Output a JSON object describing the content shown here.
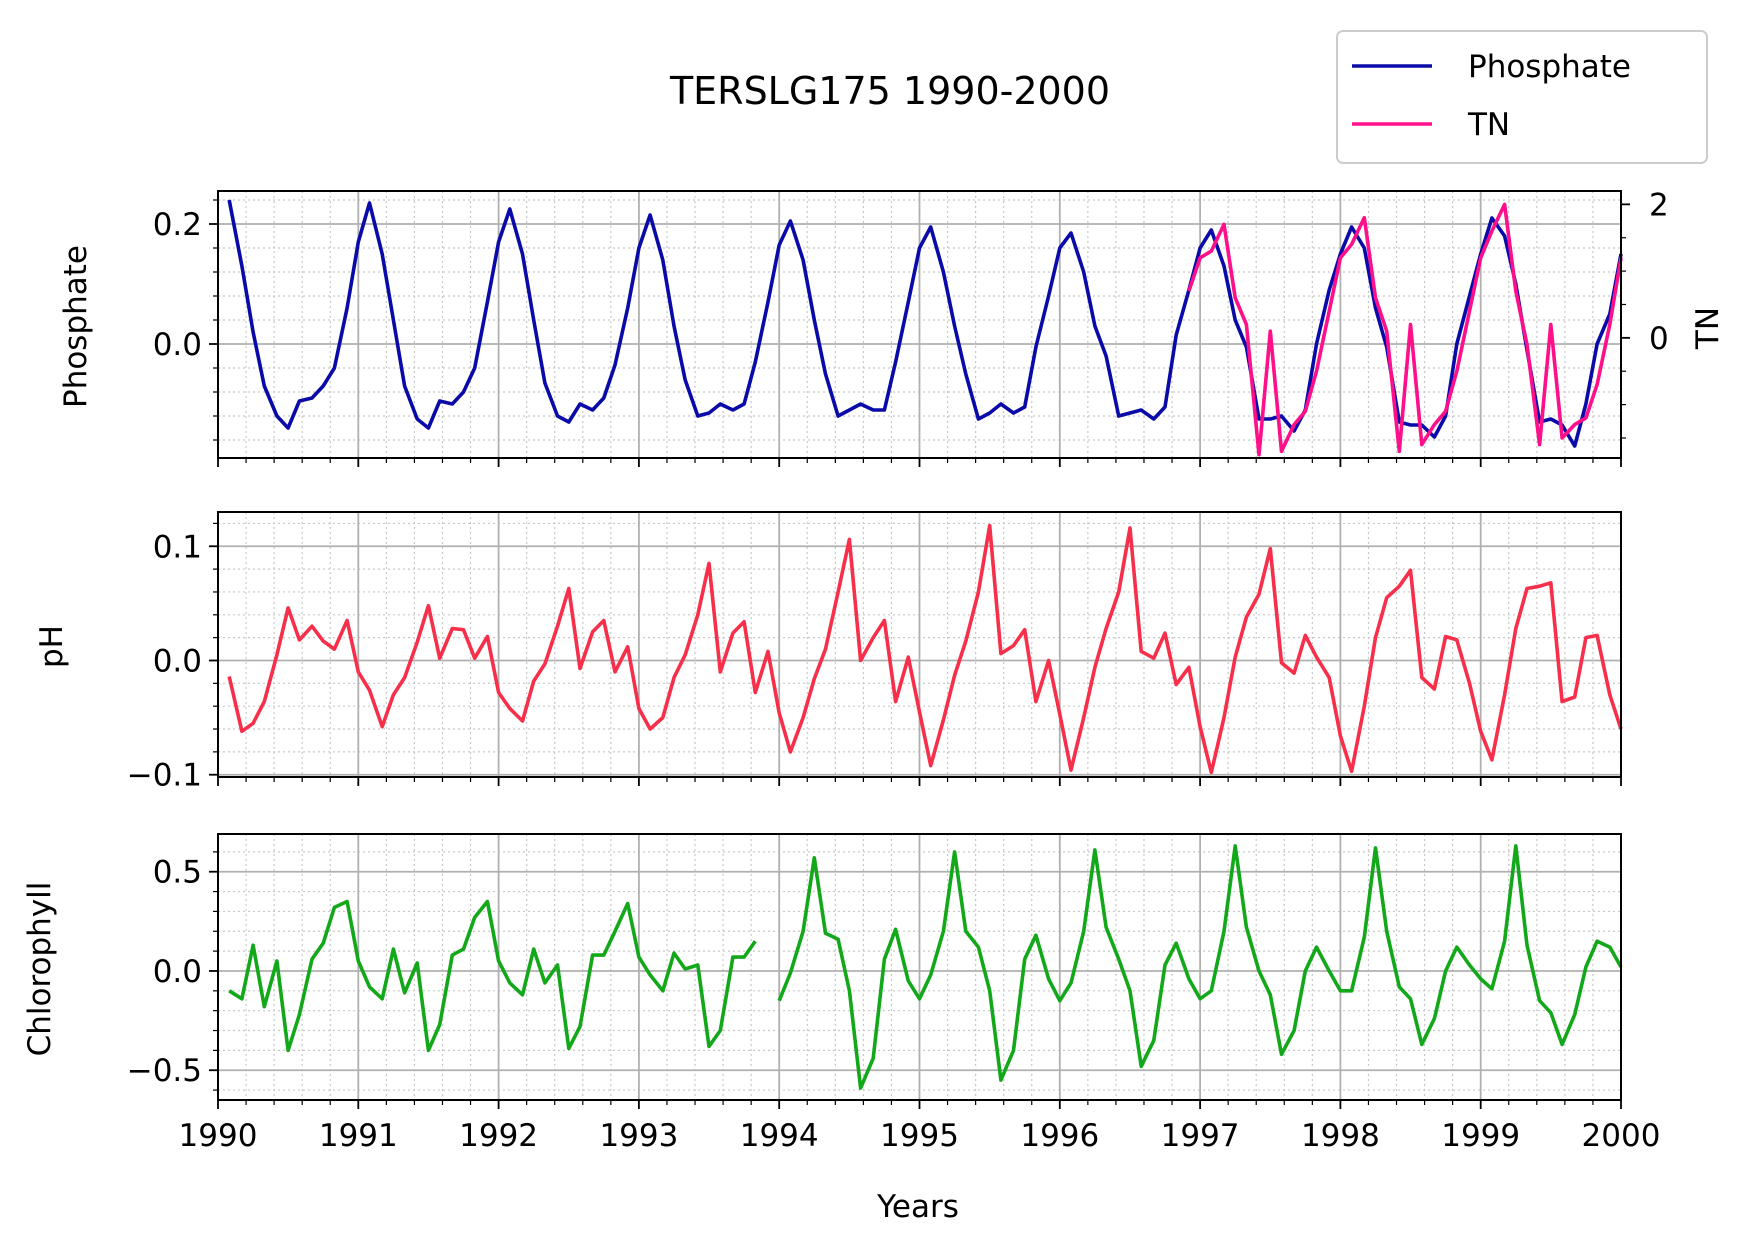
{
  "chart_data": [
    {
      "type": "line",
      "title": "TERSLG175 1990-2000",
      "ylabel": "Phosphate",
      "y2label": "TN",
      "xlim": [
        1990,
        2000
      ],
      "ylim": [
        -0.19,
        0.255
      ],
      "y2lim": [
        -1.8,
        2.2
      ],
      "yticks": [
        0.0,
        0.2
      ],
      "y2ticks": [
        0,
        2
      ],
      "grid": true,
      "legend": {
        "placement": "upper-right, above plot",
        "entries": [
          "Phosphate",
          "TN"
        ]
      },
      "series": [
        {
          "name": "Phosphate",
          "axis": "left",
          "color": "#0a0aa8",
          "x": [
            1990.08,
            1990.17,
            1990.25,
            1990.33,
            1990.42,
            1990.5,
            1990.58,
            1990.67,
            1990.75,
            1990.83,
            1990.92,
            1991.0,
            1991.08,
            1991.17,
            1991.25,
            1991.33,
            1991.42,
            1991.5,
            1991.58,
            1991.67,
            1991.75,
            1991.83,
            1991.92,
            1992.0,
            1992.08,
            1992.17,
            1992.25,
            1992.33,
            1992.42,
            1992.5,
            1992.58,
            1992.67,
            1992.75,
            1992.83,
            1992.92,
            1993.0,
            1993.08,
            1993.17,
            1993.25,
            1993.33,
            1993.42,
            1993.5,
            1993.58,
            1993.67,
            1993.75,
            1993.83,
            1993.92,
            1994.0,
            1994.08,
            1994.17,
            1994.25,
            1994.33,
            1994.42,
            1994.5,
            1994.58,
            1994.67,
            1994.75,
            1994.83,
            1994.92,
            1995.0,
            1995.08,
            1995.17,
            1995.25,
            1995.33,
            1995.42,
            1995.5,
            1995.58,
            1995.67,
            1995.75,
            1995.83,
            1995.92,
            1996.0,
            1996.08,
            1996.17,
            1996.25,
            1996.33,
            1996.42,
            1996.5,
            1996.58,
            1996.67,
            1996.75,
            1996.83,
            1996.92,
            1997.0,
            1997.08,
            1997.17,
            1997.25,
            1997.33,
            1997.42,
            1997.5,
            1997.58,
            1997.67,
            1997.75,
            1997.83,
            1997.92,
            1998.0,
            1998.08,
            1998.17,
            1998.25,
            1998.33,
            1998.42,
            1998.5,
            1998.58,
            1998.67,
            1998.75,
            1998.83,
            1998.92,
            1999.0,
            1999.08,
            1999.17,
            1999.25,
            1999.33,
            1999.42,
            1999.5,
            1999.58,
            1999.67,
            1999.75,
            1999.83,
            1999.92,
            2000.0
          ],
          "y": [
            0.24,
            0.13,
            0.02,
            -0.07,
            -0.12,
            -0.14,
            -0.095,
            -0.09,
            -0.07,
            -0.04,
            0.06,
            0.17,
            0.235,
            0.15,
            0.04,
            -0.07,
            -0.125,
            -0.14,
            -0.095,
            -0.1,
            -0.08,
            -0.04,
            0.07,
            0.17,
            0.225,
            0.15,
            0.04,
            -0.065,
            -0.12,
            -0.13,
            -0.1,
            -0.11,
            -0.09,
            -0.035,
            0.06,
            0.16,
            0.215,
            0.14,
            0.03,
            -0.06,
            -0.12,
            -0.115,
            -0.1,
            -0.11,
            -0.1,
            -0.03,
            0.07,
            0.165,
            0.205,
            0.14,
            0.04,
            -0.05,
            -0.12,
            -0.11,
            -0.1,
            -0.11,
            -0.11,
            -0.03,
            0.07,
            0.16,
            0.195,
            0.12,
            0.03,
            -0.05,
            -0.125,
            -0.115,
            -0.1,
            -0.115,
            -0.105,
            -0.005,
            0.08,
            0.16,
            0.185,
            0.12,
            0.03,
            -0.02,
            -0.12,
            -0.115,
            -0.11,
            -0.125,
            -0.105,
            0.015,
            0.09,
            0.16,
            0.19,
            0.13,
            0.04,
            -0.005,
            -0.125,
            -0.125,
            -0.12,
            -0.145,
            -0.11,
            0.0,
            0.09,
            0.15,
            0.195,
            0.16,
            0.06,
            -0.005,
            -0.13,
            -0.135,
            -0.135,
            -0.155,
            -0.12,
            0.0,
            0.08,
            0.15,
            0.21,
            0.18,
            0.1,
            -0.01,
            -0.13,
            -0.125,
            -0.135,
            -0.17,
            -0.1,
            0.0,
            0.05,
            0.15
          ]
        },
        {
          "name": "TN",
          "axis": "right",
          "color": "#ff0f8a",
          "x": [
            1996.92,
            1997.0,
            1997.08,
            1997.17,
            1997.25,
            1997.33,
            1997.42,
            1997.5,
            1997.58,
            1997.67,
            1997.75,
            1997.83,
            1997.92,
            1998.0,
            1998.08,
            1998.17,
            1998.25,
            1998.33,
            1998.42,
            1998.5,
            1998.58,
            1998.67,
            1998.75,
            1998.83,
            1998.92,
            1999.0,
            1999.08,
            1999.17,
            1999.25,
            1999.33,
            1999.42,
            1999.5,
            1999.58,
            1999.67,
            1999.75,
            1999.83,
            1999.92,
            2000.0
          ],
          "y": [
            0.7,
            1.2,
            1.3,
            1.7,
            0.6,
            0.2,
            -1.75,
            0.1,
            -1.7,
            -1.3,
            -1.1,
            -0.5,
            0.4,
            1.2,
            1.4,
            1.8,
            0.6,
            0.1,
            -1.7,
            0.2,
            -1.6,
            -1.3,
            -1.1,
            -0.5,
            0.4,
            1.2,
            1.6,
            2.0,
            0.7,
            -0.1,
            -1.6,
            0.2,
            -1.5,
            -1.3,
            -1.2,
            -0.7,
            0.2,
            1.2
          ]
        }
      ]
    },
    {
      "type": "line",
      "ylabel": "pH",
      "xlim": [
        1990,
        2000
      ],
      "ylim": [
        -0.102,
        0.13
      ],
      "yticks": [
        -0.1,
        0.0,
        0.1
      ],
      "grid": true,
      "series": [
        {
          "color": "#f72f4a",
          "x": [
            1990.08,
            1990.17,
            1990.25,
            1990.33,
            1990.42,
            1990.5,
            1990.58,
            1990.67,
            1990.75,
            1990.83,
            1990.92,
            1991.0,
            1991.08,
            1991.17,
            1991.25,
            1991.33,
            1991.42,
            1991.5,
            1991.58,
            1991.67,
            1991.75,
            1991.83,
            1991.92,
            1992.0,
            1992.08,
            1992.17,
            1992.25,
            1992.33,
            1992.42,
            1992.5,
            1992.58,
            1992.67,
            1992.75,
            1992.83,
            1992.92,
            1993.0,
            1993.08,
            1993.17,
            1993.25,
            1993.33,
            1993.42,
            1993.5,
            1993.58,
            1993.67,
            1993.75,
            1993.83,
            1993.92,
            1994.0,
            1994.08,
            1994.17,
            1994.25,
            1994.33,
            1994.42,
            1994.5,
            1994.58,
            1994.67,
            1994.75,
            1994.83,
            1994.92,
            1995.0,
            1995.08,
            1995.17,
            1995.25,
            1995.33,
            1995.42,
            1995.5,
            1995.58,
            1995.67,
            1995.75,
            1995.83,
            1995.92,
            1996.0,
            1996.08,
            1996.17,
            1996.25,
            1996.33,
            1996.42,
            1996.5,
            1996.58,
            1996.67,
            1996.75,
            1996.83,
            1996.92,
            1997.0,
            1997.08,
            1997.17,
            1997.25,
            1997.33,
            1997.42,
            1997.5,
            1997.58,
            1997.67,
            1997.75,
            1997.83,
            1997.92,
            1998.0,
            1998.08,
            1998.17,
            1998.25,
            1998.33,
            1998.42,
            1998.5,
            1998.58,
            1998.67,
            1998.75,
            1998.83,
            1998.92,
            1999.0,
            1999.08,
            1999.17,
            1999.25,
            1999.33,
            1999.42,
            1999.5,
            1999.58,
            1999.67,
            1999.75,
            1999.83,
            1999.92,
            2000.0
          ],
          "y": [
            -0.014,
            -0.062,
            -0.055,
            -0.036,
            0.005,
            0.046,
            0.018,
            0.03,
            0.017,
            0.01,
            0.035,
            -0.01,
            -0.026,
            -0.058,
            -0.03,
            -0.015,
            0.016,
            0.048,
            0.002,
            0.028,
            0.027,
            0.002,
            0.021,
            -0.028,
            -0.042,
            -0.053,
            -0.018,
            -0.003,
            0.03,
            0.063,
            -0.007,
            0.025,
            0.035,
            -0.01,
            0.012,
            -0.042,
            -0.06,
            -0.05,
            -0.015,
            0.005,
            0.04,
            0.085,
            -0.01,
            0.024,
            0.034,
            -0.028,
            0.008,
            -0.046,
            -0.08,
            -0.05,
            -0.016,
            0.01,
            0.06,
            0.106,
            0.0,
            0.02,
            0.035,
            -0.036,
            0.003,
            -0.045,
            -0.092,
            -0.052,
            -0.013,
            0.017,
            0.06,
            0.118,
            0.006,
            0.013,
            0.027,
            -0.036,
            0.0,
            -0.047,
            -0.096,
            -0.05,
            -0.006,
            0.028,
            0.06,
            0.116,
            0.008,
            0.002,
            0.024,
            -0.021,
            -0.006,
            -0.058,
            -0.098,
            -0.05,
            0.003,
            0.038,
            0.058,
            0.098,
            -0.002,
            -0.011,
            0.022,
            0.003,
            -0.015,
            -0.066,
            -0.097,
            -0.04,
            0.02,
            0.055,
            0.065,
            0.079,
            -0.015,
            -0.025,
            0.021,
            0.018,
            -0.02,
            -0.062,
            -0.087,
            -0.03,
            0.028,
            0.063,
            0.065,
            0.068,
            -0.036,
            -0.032,
            0.02,
            0.022,
            -0.03,
            -0.06
          ]
        }
      ]
    },
    {
      "type": "line",
      "ylabel": "Chlorophyll",
      "xlabel": "Years",
      "xlim": [
        1990,
        2000
      ],
      "ylim": [
        -0.65,
        0.69
      ],
      "yticks": [
        -0.5,
        0.0,
        0.5
      ],
      "xticks": [
        1990,
        1991,
        1992,
        1993,
        1994,
        1995,
        1996,
        1997,
        1998,
        1999,
        2000
      ],
      "grid": true,
      "series": [
        {
          "color": "#12a81a",
          "x": [
            1990.08,
            1990.17,
            1990.25,
            1990.33,
            1990.42,
            1990.5,
            1990.58,
            1990.67,
            1990.75,
            1990.83,
            1990.92,
            1991.0,
            1991.08,
            1991.17,
            1991.25,
            1991.33,
            1991.42,
            1991.5,
            1991.58,
            1991.67,
            1991.75,
            1991.83,
            1991.92,
            1992.0,
            1992.08,
            1992.17,
            1992.25,
            1992.33,
            1992.42,
            1992.5,
            1992.58,
            1992.67,
            1992.75,
            1992.83,
            1992.92,
            1993.0,
            1993.08,
            1993.17,
            1993.25,
            1993.33,
            1993.42,
            1993.5,
            1993.58,
            1993.67,
            1993.75,
            1993.83
          ],
          "y": [
            -0.1,
            -0.14,
            0.13,
            -0.18,
            0.05,
            -0.4,
            -0.22,
            0.06,
            0.14,
            0.32,
            0.35,
            0.05,
            -0.08,
            -0.14,
            0.11,
            -0.11,
            0.04,
            -0.4,
            -0.27,
            0.08,
            0.11,
            0.27,
            0.35,
            0.05,
            -0.06,
            -0.12,
            0.11,
            -0.06,
            0.03,
            -0.39,
            -0.28,
            0.08,
            0.08,
            0.2,
            0.34,
            0.07,
            -0.02,
            -0.1,
            0.09,
            0.01,
            0.03,
            -0.38,
            -0.3,
            0.07,
            0.07,
            0.15
          ]
        },
        {
          "color": "#12a81a",
          "x": [
            1994.0,
            1994.08,
            1994.17,
            1994.25,
            1994.33,
            1994.42,
            1994.5,
            1994.58,
            1994.67,
            1994.75,
            1994.83,
            1994.92,
            1995.0,
            1995.08,
            1995.17,
            1995.25,
            1995.33,
            1995.42,
            1995.5,
            1995.58,
            1995.67,
            1995.75,
            1995.83,
            1995.92,
            1996.0,
            1996.08,
            1996.17,
            1996.25,
            1996.33,
            1996.42,
            1996.5,
            1996.58,
            1996.67,
            1996.75,
            1996.83,
            1996.92,
            1997.0,
            1997.08,
            1997.17,
            1997.25,
            1997.33,
            1997.42,
            1997.5,
            1997.58,
            1997.67,
            1997.75,
            1997.83,
            1997.92,
            1998.0,
            1998.08,
            1998.17,
            1998.25,
            1998.33,
            1998.42,
            1998.5,
            1998.58,
            1998.67,
            1998.75,
            1998.83,
            1998.92,
            1999.0,
            1999.08,
            1999.17,
            1999.25,
            1999.33,
            1999.42,
            1999.5,
            1999.58,
            1999.67,
            1999.75,
            1999.83,
            1999.92,
            2000.0
          ],
          "y": [
            -0.15,
            -0.01,
            0.2,
            0.57,
            0.19,
            0.16,
            -0.1,
            -0.59,
            -0.44,
            0.06,
            0.21,
            -0.05,
            -0.14,
            -0.02,
            0.2,
            0.6,
            0.2,
            0.12,
            -0.1,
            -0.55,
            -0.4,
            0.06,
            0.18,
            -0.04,
            -0.15,
            -0.06,
            0.2,
            0.61,
            0.22,
            0.06,
            -0.1,
            -0.48,
            -0.35,
            0.03,
            0.14,
            -0.04,
            -0.14,
            -0.1,
            0.2,
            0.63,
            0.22,
            0.0,
            -0.12,
            -0.42,
            -0.3,
            0.0,
            0.12,
            0.0,
            -0.1,
            -0.1,
            0.17,
            0.62,
            0.2,
            -0.08,
            -0.14,
            -0.37,
            -0.24,
            0.0,
            0.12,
            0.03,
            -0.04,
            -0.09,
            0.15,
            0.63,
            0.13,
            -0.15,
            -0.21,
            -0.37,
            -0.22,
            0.02,
            0.15,
            0.12,
            0.02
          ]
        }
      ]
    }
  ]
}
